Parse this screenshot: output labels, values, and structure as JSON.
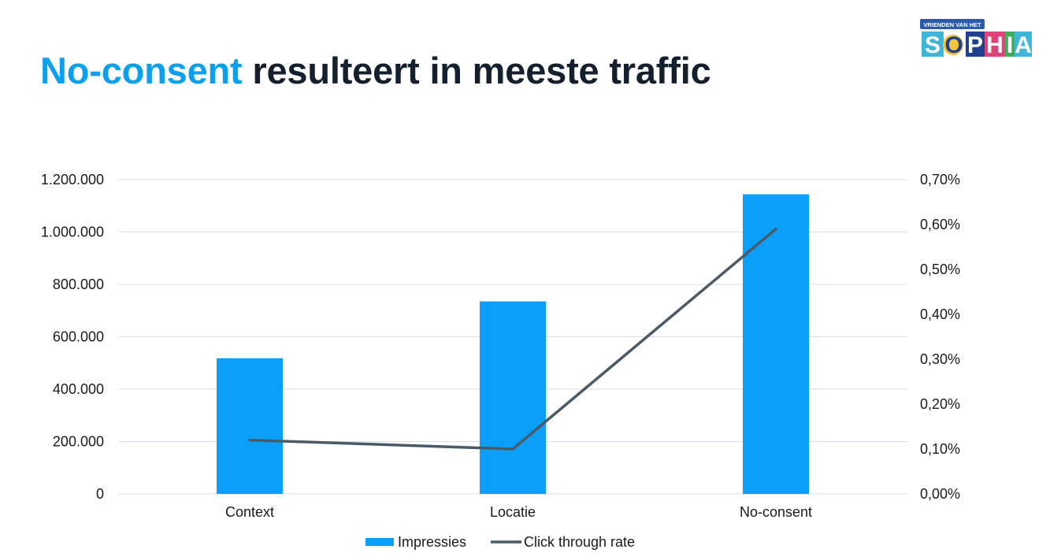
{
  "slide": {
    "title_accent": "No-consent",
    "title_rest": " resulteert in meeste traffic"
  },
  "logo": {
    "small_text": "VRIENDEN VAN HET",
    "letters": [
      "S",
      "O",
      "P",
      "H",
      "I",
      "A"
    ],
    "colors": {
      "banner": "#2a5bb0",
      "S": "#3fb6d9",
      "O": "#f7c53b",
      "P": "#1f3f8f",
      "H": "#e0427a",
      "I": "#3fae5a",
      "A": "#3fb6d9"
    }
  },
  "chart_data": {
    "type": "bar",
    "categories": [
      "Context",
      "Locatie",
      "No-consent"
    ],
    "series": [
      {
        "name": "Impressies",
        "type": "bar",
        "axis": "left",
        "color": "#0aa0fa",
        "values": [
          518000,
          735000,
          1144000
        ]
      },
      {
        "name": "Click through rate",
        "type": "line",
        "axis": "right",
        "color": "#4a5a66",
        "values": [
          0.12,
          0.1,
          0.59
        ]
      }
    ],
    "y_left": {
      "ylim": [
        0,
        1200000
      ],
      "ticks": [
        0,
        200000,
        400000,
        600000,
        800000,
        1000000,
        1200000
      ],
      "tick_labels": [
        "0",
        "200.000",
        "400.000",
        "600.000",
        "800.000",
        "1.000.000",
        "1.200.000"
      ]
    },
    "y_right": {
      "ylim": [
        0,
        0.7
      ],
      "ticks": [
        0,
        0.1,
        0.2,
        0.3,
        0.4,
        0.5,
        0.6,
        0.7
      ],
      "tick_labels": [
        "0,00%",
        "0,10%",
        "0,20%",
        "0,30%",
        "0,40%",
        "0,50%",
        "0,60%",
        "0,70%"
      ]
    },
    "grid": true,
    "gridline_color": "#d9dee8",
    "legend_position": "bottom"
  }
}
